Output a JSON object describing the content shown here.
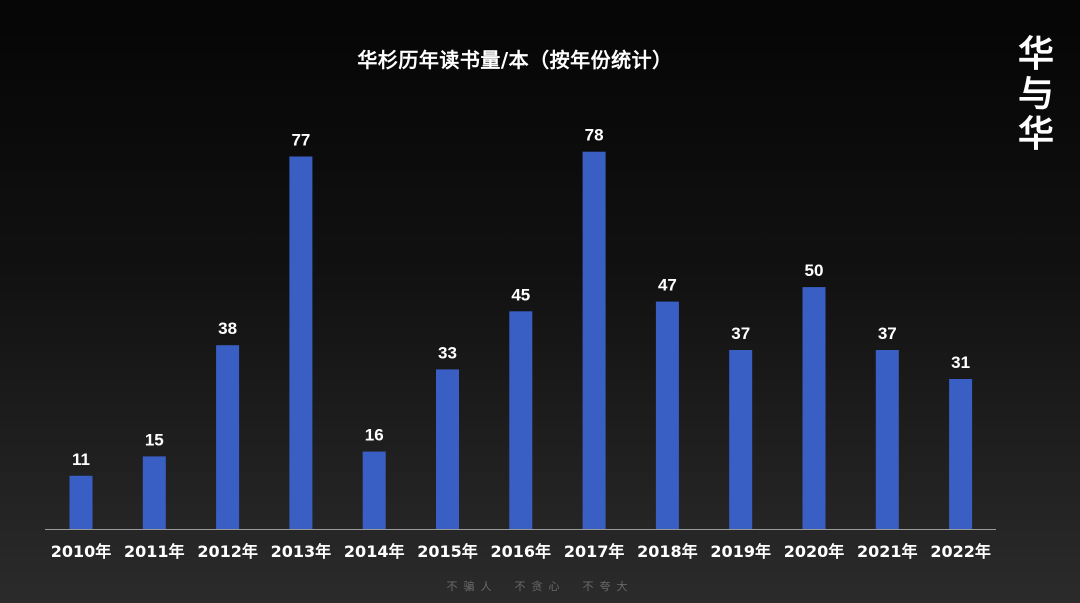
{
  "chart_data": {
    "type": "bar",
    "title": "华杉历年读书量/本（按年份统计）",
    "categories": [
      "2010年",
      "2011年",
      "2012年",
      "2013年",
      "2014年",
      "2015年",
      "2016年",
      "2017年",
      "2018年",
      "2019年",
      "2020年",
      "2021年",
      "2022年"
    ],
    "values": [
      11,
      15,
      38,
      77,
      16,
      33,
      45,
      78,
      47,
      37,
      50,
      37,
      31
    ],
    "ylim": [
      0,
      80
    ],
    "grid": false,
    "data_labels": true,
    "bar_color": "#3a5fc4"
  },
  "logo": {
    "chars": [
      "华",
      "与",
      "华"
    ]
  },
  "footer": {
    "text": "不骗人　不贪心　不夸大"
  }
}
